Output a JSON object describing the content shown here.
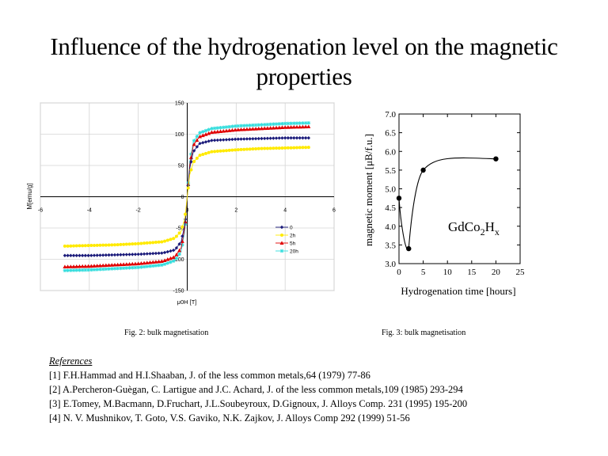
{
  "slide": {
    "title_line1": "Influence of the hydrogenation level on the magnetic",
    "title_line2": "properties"
  },
  "figure2": {
    "caption": "Fig. 2: bulk magnetisation",
    "ylabel": "M[emu/g]",
    "xlabel": "μ0H [T]",
    "colors": {
      "s0": "#1a1a7a",
      "s2": "#ffea00",
      "s5": "#e00000",
      "s20": "#33dddd"
    }
  },
  "figure3": {
    "caption": "Fig. 3: bulk magnetisation",
    "annotation_main": "GdCo",
    "annotation_sub1": "2",
    "annotation_mid": "H",
    "annotation_sub2": "x"
  },
  "references": {
    "heading": "References",
    "items": [
      "[1] F.H.Hammad and H.I.Shaaban, J. of the less common metals,64 (1979) 77-86",
      "[2] A.Percheron-Guègan, C. Lartigue and J.C. Achard, J. of the less common metals,109 (1985) 293-294",
      "[3] E.Tomey, M.Bacmann, D.Fruchart, J.L.Soubeyroux, D.Gignoux, J. Alloys Comp. 231 (1995) 195-200",
      "[4] N. V. Mushnikov, T. Goto, V.S. Gaviko, N.K. Zajkov, J. Alloys Comp 292 (1999) 51-56"
    ]
  },
  "chart_data": [
    {
      "type": "scatter",
      "title": "",
      "xlabel": "μ0H [T]",
      "ylabel": "M[emu/g]",
      "xlim": [
        -6,
        6
      ],
      "ylim": [
        -150,
        150
      ],
      "x_ticks": [
        "-6",
        "-4",
        "-2",
        "0",
        "2",
        "4",
        "6"
      ],
      "y_ticks": [
        "150",
        "100",
        "50",
        "0",
        "-50",
        "-100",
        "-150"
      ],
      "x_tick_values": [
        -6,
        -4,
        -2,
        0,
        2,
        4,
        6
      ],
      "y_tick_values": [
        150,
        100,
        50,
        0,
        -50,
        -100,
        -150
      ],
      "legend_position": "lower-right",
      "series": [
        {
          "name": "0",
          "label": "0",
          "color": "#1a1a7a",
          "marker": "diamond",
          "msat": 94,
          "x": [
            0.1,
            0.25,
            0.5,
            1,
            2,
            3,
            4,
            5
          ],
          "y": [
            45,
            72,
            85,
            90,
            92,
            93,
            94,
            94
          ]
        },
        {
          "name": "2h",
          "label": "2h",
          "color": "#ffea00",
          "marker": "circle",
          "msat": 79,
          "x": [
            0.1,
            0.25,
            0.5,
            1,
            2,
            3,
            4,
            5
          ],
          "y": [
            35,
            55,
            66,
            72,
            75,
            77,
            78,
            79
          ]
        },
        {
          "name": "5h",
          "label": "5h",
          "color": "#e00000",
          "marker": "triangle",
          "msat": 112,
          "x": [
            0.1,
            0.25,
            0.5,
            1,
            2,
            3,
            4,
            5
          ],
          "y": [
            50,
            82,
            96,
            103,
            107,
            109,
            111,
            112
          ]
        },
        {
          "name": "20h",
          "label": "20h",
          "color": "#33dddd",
          "marker": "star",
          "msat": 118,
          "x": [
            0.1,
            0.25,
            0.5,
            1,
            2,
            3,
            4,
            5
          ],
          "y": [
            55,
            88,
            102,
            109,
            113,
            115,
            117,
            118
          ]
        }
      ]
    },
    {
      "type": "line",
      "title": "",
      "xlabel": "Hydrogenation time [hours]",
      "ylabel": "magnetic moment [μB/f.u.]",
      "xlim": [
        0,
        25
      ],
      "ylim": [
        3.0,
        7.0
      ],
      "x_ticks": [
        "0",
        "5",
        "10",
        "15",
        "20",
        "25"
      ],
      "y_ticks": [
        "7.0",
        "6.5",
        "6.0",
        "5.5",
        "5.0",
        "4.5",
        "4.0",
        "3.5",
        "3.0"
      ],
      "x_tick_values": [
        0,
        5,
        10,
        15,
        20,
        25
      ],
      "y_tick_values": [
        7.0,
        6.5,
        6.0,
        5.5,
        5.0,
        4.5,
        4.0,
        3.5,
        3.0
      ],
      "series": [
        {
          "name": "GdCo2Hx",
          "x": [
            0,
            2,
            5,
            20
          ],
          "y": [
            4.75,
            3.4,
            5.5,
            5.8
          ]
        }
      ]
    }
  ]
}
